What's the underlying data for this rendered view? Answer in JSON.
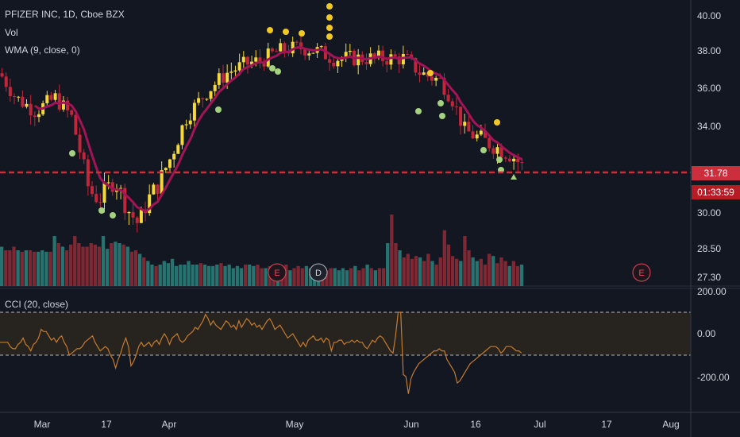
{
  "legend": {
    "title": "PFIZER INC, 1D, Cboe BZX",
    "volume": "Vol",
    "wma": "WMA (9, close, 0)",
    "cci": "CCI (20, close)"
  },
  "price_tags": {
    "last": "31.78",
    "countdown": "01:33:59"
  },
  "colors": {
    "background": "#131722",
    "up": "#f5d83b",
    "down": "#c2263a",
    "wma": "#a31456",
    "vol_up": "#2a7d79",
    "vol_down": "#8b2a36",
    "cci_line": "#c57b2e",
    "last_price": "#cc2f3c",
    "dots_yellow": "#f2c922",
    "dots_green": "#a5d27e"
  },
  "chart_data": {
    "type": "candlestick",
    "title": "PFIZER INC, 1D, Cboe BZX",
    "price_axis": {
      "ticks": [
        40.0,
        38.0,
        36.0,
        34.0,
        30.0,
        28.5,
        27.3
      ],
      "tick_labels": [
        "40.00",
        "38.00",
        "36.00",
        "34.00",
        "30.00",
        "28.50",
        "27.30"
      ],
      "scale": "log"
    },
    "time_axis": [
      "Mar",
      "17",
      "Apr",
      "May",
      "Jun",
      "16",
      "Jul",
      "17",
      "Aug"
    ],
    "last_price": 31.78,
    "countdown": "01:33:59",
    "events": [
      "E",
      "D",
      "E"
    ],
    "cci_axis": {
      "ticks": [
        200,
        0,
        -200
      ],
      "tick_labels": [
        "200.00",
        "0.00",
        "-200.00"
      ],
      "bands": [
        100,
        -100
      ]
    },
    "series": [
      {
        "name": "Vol",
        "values": [
          0.55,
          0.5,
          0.5,
          0.55,
          0.5,
          0.48,
          0.5,
          0.5,
          0.48,
          0.48,
          0.5,
          0.48,
          0.48,
          0.7,
          0.6,
          0.55,
          0.5,
          0.58,
          0.7,
          0.6,
          0.55,
          0.55,
          0.6,
          0.58,
          0.55,
          0.7,
          0.52,
          0.6,
          0.62,
          0.6,
          0.58,
          0.55,
          0.48,
          0.5,
          0.45,
          0.4,
          0.35,
          0.3,
          0.28,
          0.3,
          0.35,
          0.32,
          0.38,
          0.28,
          0.3,
          0.3,
          0.35,
          0.3,
          0.3,
          0.32,
          0.3,
          0.28,
          0.28,
          0.3,
          0.32,
          0.28,
          0.3,
          0.25,
          0.28,
          0.25,
          0.3,
          0.3,
          0.28,
          0.3,
          0.25,
          0.25,
          0.28,
          0.3,
          0.3,
          0.28,
          0.3,
          0.22,
          0.25,
          0.28,
          0.25,
          0.28,
          0.25,
          0.25,
          0.22,
          0.25,
          0.22,
          0.25,
          0.25,
          0.22,
          0.25,
          0.22,
          0.25,
          0.28,
          0.22,
          0.25,
          0.3,
          0.25,
          0.22,
          0.25,
          0.25,
          0.6,
          1.0,
          0.6,
          0.5,
          0.4,
          0.45,
          0.38,
          0.42,
          0.4,
          0.35,
          0.45,
          0.35,
          0.3,
          0.4,
          0.78,
          0.58,
          0.42,
          0.38,
          0.35,
          0.7,
          0.5,
          0.4,
          0.35,
          0.38,
          0.3,
          0.45,
          0.42,
          0.32,
          0.4,
          0.35,
          0.28,
          0.35,
          0.28,
          0.3
        ]
      },
      {
        "name": "CCI",
        "values": [
          -40,
          -40,
          -40,
          -40,
          -60,
          -70,
          -70,
          -50,
          -40,
          -20,
          -50,
          -60,
          -80,
          -50,
          -40,
          -20,
          20,
          10,
          10,
          -10,
          -30,
          -20,
          -40,
          -20,
          -10,
          -40,
          -60,
          -100,
          -90,
          -80,
          -70,
          -70,
          -60,
          -40,
          -30,
          -20,
          -10,
          -40,
          -60,
          -80,
          -70,
          -60,
          -70,
          -100,
          -120,
          -160,
          -120,
          -90,
          -50,
          -20,
          -60,
          -150,
          -130,
          -100,
          -60,
          -40,
          -60,
          -50,
          -40,
          -60,
          -40,
          -30,
          -50,
          -20,
          0,
          -20,
          -50,
          -20,
          -10,
          0,
          -30,
          -40,
          -30,
          -10,
          0,
          10,
          30,
          20,
          40,
          60,
          90,
          70,
          40,
          60,
          40,
          30,
          20,
          40,
          60,
          50,
          30,
          40,
          20,
          60,
          30,
          50,
          70,
          60,
          40,
          50,
          30,
          40,
          20,
          40,
          60,
          70,
          50,
          20,
          30,
          40,
          20,
          0,
          -20,
          -10,
          0,
          -20,
          -40,
          -60,
          -40,
          -60,
          -30,
          -20,
          -10,
          -30,
          -30,
          -20,
          -40,
          -20,
          -30,
          -80,
          -40,
          -40,
          -30,
          -30,
          -50,
          -40,
          -40,
          -30,
          -40,
          -30,
          -40,
          -40,
          -60,
          -70,
          -50,
          -30,
          -40,
          -20,
          -10,
          -20,
          -40,
          -60,
          -80,
          -90,
          -10,
          100,
          100,
          -190,
          -200,
          -280,
          -210,
          -180,
          -160,
          -140,
          -130,
          -120,
          -110,
          -100,
          -90,
          -80,
          -80,
          -70,
          -80,
          -80,
          -120,
          -140,
          -160,
          -180,
          -230,
          -220,
          -200,
          -180,
          -160,
          -140,
          -130,
          -120,
          -110,
          -100,
          -90,
          -80,
          -70,
          -60,
          -60,
          -60,
          -70,
          -90,
          -80,
          -60,
          -60,
          -60,
          -70,
          -80,
          -80,
          -90
        ]
      }
    ]
  }
}
